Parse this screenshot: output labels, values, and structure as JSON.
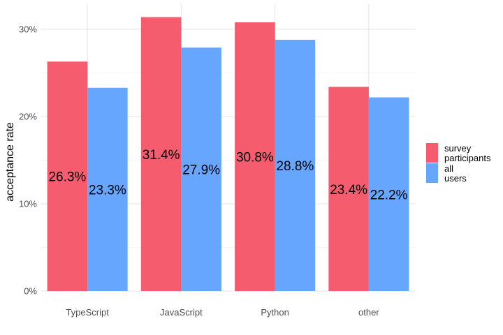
{
  "chart_data": {
    "type": "bar",
    "title": "",
    "xlabel": "",
    "ylabel": "acceptance rate",
    "ylim": [
      0,
      0.32
    ],
    "yticks": [
      0,
      0.1,
      0.2,
      0.3
    ],
    "ytick_labels": [
      "0%",
      "10%",
      "20%",
      "30%"
    ],
    "categories": [
      "TypeScript",
      "JavaScript",
      "Python",
      "other"
    ],
    "series": [
      {
        "name": "survey participants",
        "legend_lines": [
          "survey",
          "participants"
        ],
        "color": "#f55c6e",
        "values": [
          0.263,
          0.314,
          0.308,
          0.234
        ],
        "labels": [
          "26.3%",
          "31.4%",
          "30.8%",
          "23.4%"
        ]
      },
      {
        "name": "all users",
        "legend_lines": [
          "all",
          "users"
        ],
        "color": "#66a6ff",
        "values": [
          0.233,
          0.279,
          0.288,
          0.222
        ],
        "labels": [
          "23.3%",
          "27.9%",
          "28.8%",
          "22.2%"
        ]
      }
    ],
    "grid": true,
    "legend_position": "right"
  }
}
